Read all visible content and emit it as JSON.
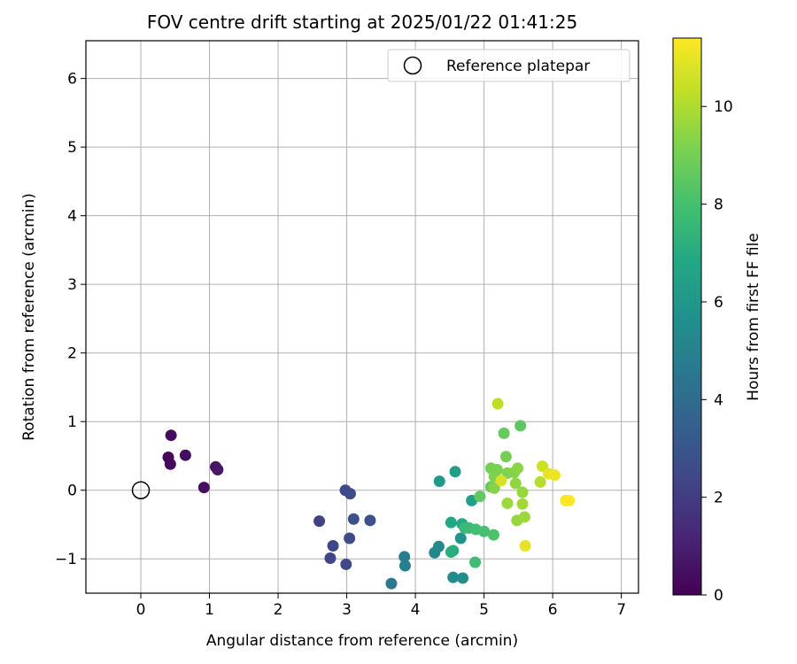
{
  "chart_data": {
    "type": "scatter",
    "title": "FOV centre drift starting at 2025/01/22 01:41:25",
    "xlabel": "Angular distance from reference (arcmin)",
    "ylabel": "Rotation from reference (arcmin)",
    "xlim": [
      -0.8,
      7.25
    ],
    "ylim": [
      -1.5,
      6.55
    ],
    "xticks": [
      0,
      1,
      2,
      3,
      4,
      5,
      6,
      7
    ],
    "yticks": [
      -1,
      0,
      1,
      2,
      3,
      4,
      5,
      6
    ],
    "grid": true,
    "legend": {
      "position": "top-right",
      "entries": [
        "Reference platepar"
      ]
    },
    "reference_point": {
      "name": "Reference platepar",
      "x": 0,
      "y": 0
    },
    "colorbar": {
      "label": "Hours from first FF file",
      "colormap": "viridis",
      "range": [
        0,
        11.4
      ],
      "ticks": [
        0,
        2,
        4,
        6,
        8,
        10
      ]
    },
    "points": [
      {
        "x": 0.44,
        "y": 0.8,
        "h": 0.3
      },
      {
        "x": 0.4,
        "y": 0.48,
        "h": 0.2
      },
      {
        "x": 0.43,
        "y": 0.38,
        "h": 0.3
      },
      {
        "x": 0.65,
        "y": 0.51,
        "h": 0.4
      },
      {
        "x": 1.09,
        "y": 0.34,
        "h": 0.6
      },
      {
        "x": 1.12,
        "y": 0.3,
        "h": 0.7
      },
      {
        "x": 0.92,
        "y": 0.04,
        "h": 0.5
      },
      {
        "x": 2.6,
        "y": -0.45,
        "h": 2.2
      },
      {
        "x": 2.8,
        "y": -0.81,
        "h": 2.4
      },
      {
        "x": 2.76,
        "y": -0.99,
        "h": 2.3
      },
      {
        "x": 2.99,
        "y": -1.08,
        "h": 2.5
      },
      {
        "x": 3.04,
        "y": -0.7,
        "h": 2.6
      },
      {
        "x": 2.98,
        "y": 0.0,
        "h": 2.5
      },
      {
        "x": 3.05,
        "y": -0.05,
        "h": 2.6
      },
      {
        "x": 3.1,
        "y": -0.42,
        "h": 2.7
      },
      {
        "x": 3.34,
        "y": -0.44,
        "h": 2.8
      },
      {
        "x": 3.65,
        "y": -1.36,
        "h": 4.6
      },
      {
        "x": 3.84,
        "y": -0.97,
        "h": 4.8
      },
      {
        "x": 3.85,
        "y": -1.1,
        "h": 4.9
      },
      {
        "x": 4.28,
        "y": -0.91,
        "h": 5.2
      },
      {
        "x": 4.34,
        "y": -0.82,
        "h": 5.3
      },
      {
        "x": 4.35,
        "y": 0.13,
        "h": 6.2
      },
      {
        "x": 4.55,
        "y": -1.27,
        "h": 5.4
      },
      {
        "x": 4.69,
        "y": -1.28,
        "h": 5.5
      },
      {
        "x": 4.58,
        "y": 0.27,
        "h": 6.3
      },
      {
        "x": 4.66,
        "y": -0.7,
        "h": 5.8
      },
      {
        "x": 4.82,
        "y": -0.15,
        "h": 6.4
      },
      {
        "x": 4.52,
        "y": -0.47,
        "h": 6.8
      },
      {
        "x": 4.68,
        "y": -0.49,
        "h": 6.9
      },
      {
        "x": 4.55,
        "y": -0.88,
        "h": 7.0
      },
      {
        "x": 4.52,
        "y": -0.9,
        "h": 7.1
      },
      {
        "x": 4.72,
        "y": -0.55,
        "h": 7.6
      },
      {
        "x": 4.78,
        "y": -0.55,
        "h": 7.7
      },
      {
        "x": 4.88,
        "y": -0.57,
        "h": 7.9
      },
      {
        "x": 4.87,
        "y": -1.05,
        "h": 7.8
      },
      {
        "x": 5.0,
        "y": -0.6,
        "h": 8.0
      },
      {
        "x": 5.14,
        "y": -0.65,
        "h": 8.2
      },
      {
        "x": 4.94,
        "y": -0.09,
        "h": 8.6
      },
      {
        "x": 5.1,
        "y": 0.05,
        "h": 8.7
      },
      {
        "x": 5.53,
        "y": 0.94,
        "h": 8.5
      },
      {
        "x": 5.29,
        "y": 0.83,
        "h": 8.7
      },
      {
        "x": 5.1,
        "y": 0.32,
        "h": 9.0
      },
      {
        "x": 5.15,
        "y": 0.2,
        "h": 9.2
      },
      {
        "x": 5.19,
        "y": 0.3,
        "h": 9.1
      },
      {
        "x": 5.15,
        "y": 0.03,
        "h": 9.3
      },
      {
        "x": 5.32,
        "y": 0.49,
        "h": 9.0
      },
      {
        "x": 5.34,
        "y": 0.25,
        "h": 9.2
      },
      {
        "x": 5.44,
        "y": 0.26,
        "h": 9.3
      },
      {
        "x": 5.49,
        "y": 0.32,
        "h": 9.4
      },
      {
        "x": 5.46,
        "y": 0.1,
        "h": 9.5
      },
      {
        "x": 5.56,
        "y": -0.03,
        "h": 9.6
      },
      {
        "x": 5.34,
        "y": -0.19,
        "h": 9.7
      },
      {
        "x": 5.56,
        "y": -0.2,
        "h": 9.8
      },
      {
        "x": 5.48,
        "y": -0.44,
        "h": 9.6
      },
      {
        "x": 5.59,
        "y": -0.39,
        "h": 9.7
      },
      {
        "x": 5.2,
        "y": 1.26,
        "h": 10.3
      },
      {
        "x": 5.82,
        "y": 0.12,
        "h": 10.1
      },
      {
        "x": 5.85,
        "y": 0.35,
        "h": 10.5
      },
      {
        "x": 5.25,
        "y": 0.14,
        "h": 10.7
      },
      {
        "x": 5.94,
        "y": 0.24,
        "h": 11.0
      },
      {
        "x": 6.03,
        "y": 0.22,
        "h": 11.1
      },
      {
        "x": 5.6,
        "y": -0.81,
        "h": 11.0
      },
      {
        "x": 6.19,
        "y": -0.15,
        "h": 11.3
      },
      {
        "x": 6.24,
        "y": -0.15,
        "h": 11.4
      }
    ]
  }
}
